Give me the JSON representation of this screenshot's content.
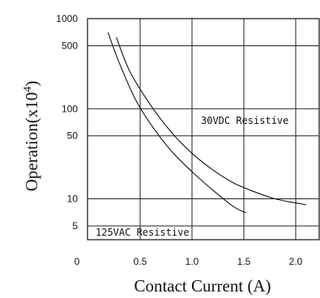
{
  "chart_data": {
    "type": "line",
    "xlabel": "Contact Current (A)",
    "ylabel": "Operation(x10",
    "ylabel_sup": "4",
    "ylabel_close": ")",
    "y_scale": "log",
    "xlim": [
      0,
      2.2
    ],
    "ylim": [
      3,
      1000
    ],
    "x_ticks": [
      "0",
      "0.5",
      "1.0",
      "1.5",
      "2.0"
    ],
    "x_tick_values": [
      0,
      0.5,
      1.0,
      1.5,
      2.0
    ],
    "y_ticks": [
      "1000",
      "500",
      "100",
      "50",
      "10",
      "5"
    ],
    "y_tick_values": [
      1000,
      500,
      100,
      50,
      10,
      5
    ],
    "grid": true,
    "series": [
      {
        "name": "30VDC Resistive",
        "points": [
          [
            0.27,
            620
          ],
          [
            0.4,
            260
          ],
          [
            0.6,
            110
          ],
          [
            0.8,
            55
          ],
          [
            1.0,
            32
          ],
          [
            1.2,
            21
          ],
          [
            1.4,
            15
          ],
          [
            1.6,
            12
          ],
          [
            1.8,
            10
          ],
          [
            2.0,
            9
          ],
          [
            2.1,
            8.6
          ]
        ]
      },
      {
        "name": "125VAC Resistive",
        "points": [
          [
            0.19,
            700
          ],
          [
            0.3,
            320
          ],
          [
            0.45,
            130
          ],
          [
            0.6,
            68
          ],
          [
            0.8,
            34
          ],
          [
            1.0,
            20
          ],
          [
            1.2,
            12.5
          ],
          [
            1.4,
            8.2
          ],
          [
            1.52,
            7
          ]
        ]
      }
    ]
  }
}
